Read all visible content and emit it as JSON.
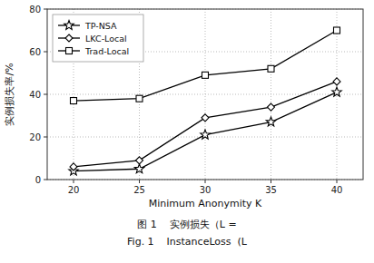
{
  "chart_data": {
    "type": "line",
    "x": [
      20,
      25,
      30,
      35,
      40
    ],
    "series": [
      {
        "name": "TP-NSA",
        "color": "#000000",
        "marker": "star",
        "values": [
          4,
          5,
          21,
          27,
          41
        ]
      },
      {
        "name": "LKC-Local",
        "color": "#000000",
        "marker": "diamond",
        "values": [
          6,
          9,
          29,
          34,
          46
        ]
      },
      {
        "name": "Trad-Local",
        "color": "#000000",
        "marker": "square",
        "values": [
          37,
          38,
          49,
          52,
          70
        ]
      }
    ],
    "x_label": "Minimum Anonymity K",
    "y_label": "实例损失率/%",
    "xlim": [
      18,
      42
    ],
    "ylim": [
      0,
      80
    ],
    "xticks": [
      20,
      25,
      30,
      35,
      40
    ],
    "yticks": [
      0,
      20,
      40,
      60,
      80
    ],
    "grid": true,
    "grid_color": "#aaaaaa",
    "legend": "upper left",
    "annotations": [
      "图 1    实例损失（L =",
      "Fig. 1    InstanceLoss  (L"
    ]
  }
}
